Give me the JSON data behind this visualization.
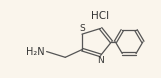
{
  "bg_color": "#faf5ec",
  "bond_color": "#555555",
  "text_color": "#333333",
  "hcl_text": "HCl",
  "nh2_text": "H₂N",
  "hcl_fontsize": 7.5,
  "nh2_fontsize": 7.0,
  "s_fontsize": 6.5,
  "n_fontsize": 6.5,
  "figsize": [
    1.61,
    0.78
  ],
  "dpi": 100,
  "lw": 0.9
}
